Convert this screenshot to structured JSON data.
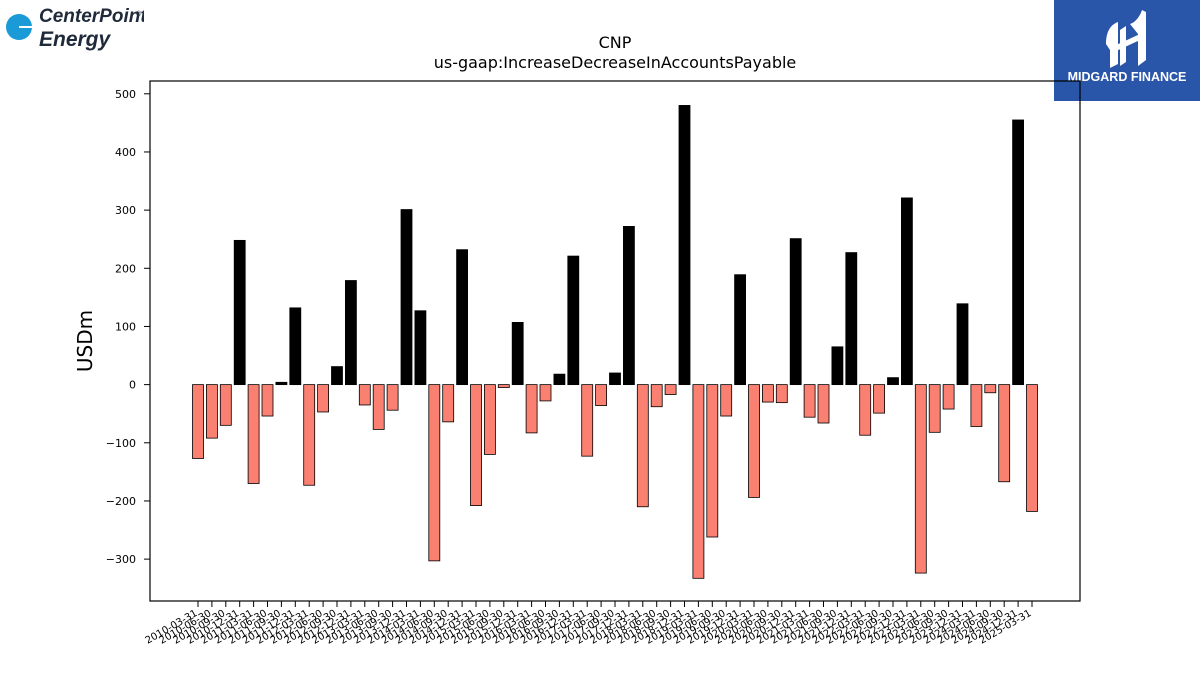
{
  "logos": {
    "left": {
      "line1": "CenterPoint",
      "line1_suffix": "®",
      "line2": "Energy",
      "color": "#1a9ad6"
    },
    "right": {
      "text": "MIDGARD FINANCE",
      "bg": "#2a56aa"
    }
  },
  "colors": {
    "positive": "#000000",
    "negative": "#fa8072"
  },
  "chart_data": {
    "type": "bar",
    "title": "CNP",
    "subtitle": "us-gaap:IncreaseDecreaseInAccountsPayable",
    "ylabel": "USDm",
    "xlabel": "",
    "ylim": [
      -372,
      522
    ],
    "yticks": [
      -300,
      -200,
      -100,
      0,
      100,
      200,
      300,
      400,
      500
    ],
    "ytick_labels": [
      "−300",
      "−200",
      "−100",
      "0",
      "100",
      "200",
      "300",
      "400",
      "500"
    ],
    "grid": false,
    "categories": [
      "2010-03-31",
      "2010-06-30",
      "2010-09-30",
      "2010-12-31",
      "2011-03-31",
      "2011-06-30",
      "2011-09-30",
      "2011-12-31",
      "2012-03-31",
      "2012-06-30",
      "2012-09-30",
      "2012-12-31",
      "2013-03-31",
      "2013-06-30",
      "2013-09-30",
      "2013-12-31",
      "2014-03-31",
      "2014-06-30",
      "2014-09-30",
      "2014-12-31",
      "2015-03-31",
      "2015-06-30",
      "2015-09-30",
      "2015-12-31",
      "2016-03-31",
      "2016-06-30",
      "2016-09-30",
      "2016-12-31",
      "2017-03-31",
      "2017-06-30",
      "2017-09-30",
      "2017-12-31",
      "2018-03-31",
      "2018-06-30",
      "2018-09-30",
      "2018-12-31",
      "2019-03-31",
      "2019-06-30",
      "2019-09-30",
      "2019-12-31",
      "2020-03-31",
      "2020-06-30",
      "2020-09-30",
      "2020-12-31",
      "2021-03-31",
      "2021-06-30",
      "2021-09-30",
      "2021-12-31",
      "2022-03-31",
      "2022-06-30",
      "2022-09-30",
      "2022-12-31",
      "2023-03-31",
      "2023-06-30",
      "2023-09-30",
      "2023-12-31",
      "2024-03-31",
      "2024-06-30",
      "2024-09-30",
      "2024-12-31",
      "2025-03-31"
    ],
    "values": [
      -127,
      -92,
      -70,
      248,
      -170,
      -54,
      4,
      132,
      -173,
      -47,
      31,
      179,
      -35,
      -77,
      -44,
      301,
      127,
      -303,
      -64,
      232,
      -208,
      -120,
      -5,
      107,
      -83,
      -28,
      18,
      221,
      -123,
      -36,
      20,
      272,
      -210,
      -38,
      -17,
      480,
      -333,
      -262,
      -54,
      189,
      -194,
      -30,
      -31,
      251,
      -56,
      -66,
      65,
      227,
      -87,
      -49,
      12,
      321,
      -324,
      -82,
      -42,
      139,
      -72,
      -14,
      -167,
      455,
      -218
    ]
  }
}
